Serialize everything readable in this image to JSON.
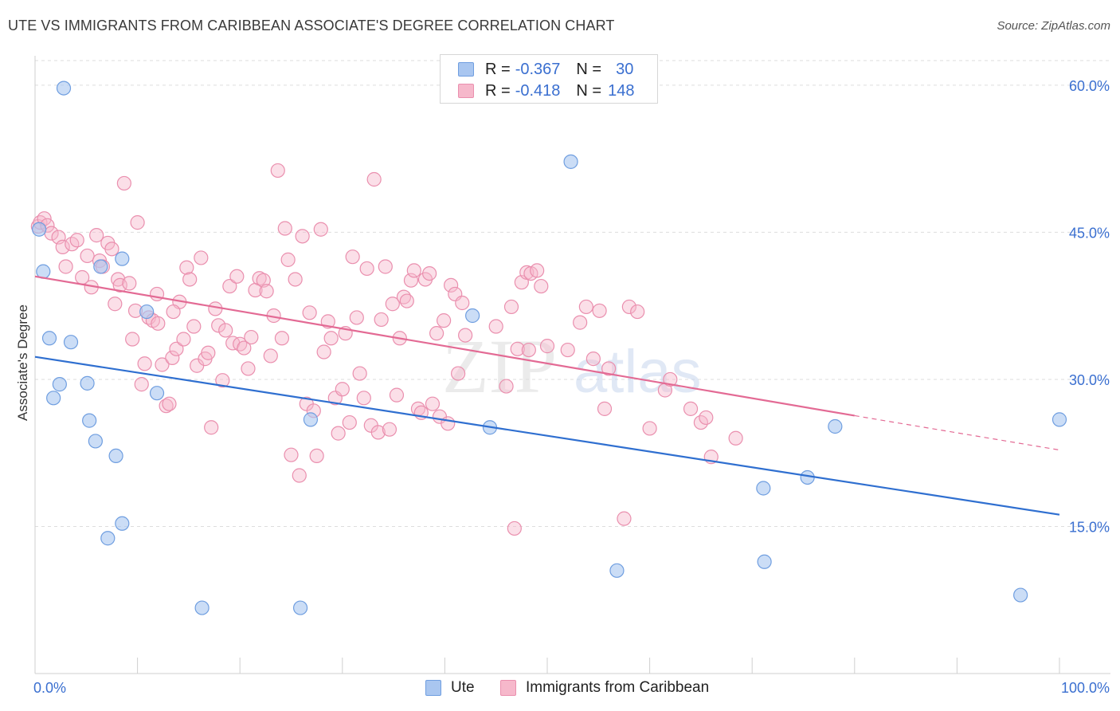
{
  "title": "UTE VS IMMIGRANTS FROM CARIBBEAN ASSOCIATE'S DEGREE CORRELATION CHART",
  "source": "Source: ZipAtlas.com",
  "watermark": {
    "zip": "ZIP",
    "atlas": "atlas"
  },
  "legend_top": [
    {
      "r_label": "R =",
      "r_value": "-0.367",
      "n_label": "N =",
      "n_value": "30"
    },
    {
      "r_label": "R =",
      "r_value": "-0.418",
      "n_label": "N =",
      "n_value": "148"
    }
  ],
  "legend_bottom": [
    "Ute",
    "Immigrants from Caribbean"
  ],
  "colors": {
    "ute_fill": "#a9c6f0",
    "ute_stroke": "#6f9ee0",
    "ute_line": "#2f6fd0",
    "carib_fill": "#f6b8cb",
    "carib_stroke": "#ea8fae",
    "carib_line": "#e36a94",
    "tick_label": "#3a6fd0",
    "grid": "#dddddd"
  },
  "chart_data": {
    "type": "scatter",
    "title": "UTE VS IMMIGRANTS FROM CARIBBEAN ASSOCIATE'S DEGREE CORRELATION CHART",
    "xlabel": "",
    "ylabel": "Associate's Degree",
    "xlim": [
      0,
      100
    ],
    "ylim": [
      0,
      63
    ],
    "x_tick_labels": [
      "0.0%",
      "100.0%"
    ],
    "y_ticks": [
      15,
      30,
      45,
      60
    ],
    "y_tick_labels": [
      "15.0%",
      "30.0%",
      "45.0%",
      "60.0%"
    ],
    "grid": true,
    "series": [
      {
        "name": "Ute",
        "points": [
          [
            0.4,
            45.3
          ],
          [
            2.8,
            59.7
          ],
          [
            0.8,
            41.0
          ],
          [
            1.4,
            34.2
          ],
          [
            3.5,
            33.8
          ],
          [
            1.8,
            28.1
          ],
          [
            2.4,
            29.5
          ],
          [
            5.1,
            29.6
          ],
          [
            5.3,
            25.8
          ],
          [
            5.9,
            23.7
          ],
          [
            6.4,
            41.5
          ],
          [
            8.5,
            42.3
          ],
          [
            10.9,
            36.9
          ],
          [
            11.9,
            28.6
          ],
          [
            7.9,
            22.2
          ],
          [
            8.5,
            15.3
          ],
          [
            7.1,
            13.8
          ],
          [
            16.3,
            6.7
          ],
          [
            25.9,
            6.7
          ],
          [
            26.9,
            25.9
          ],
          [
            42.7,
            36.5
          ],
          [
            44.4,
            25.1
          ],
          [
            52.3,
            52.2
          ],
          [
            56.8,
            10.5
          ],
          [
            71.2,
            11.4
          ],
          [
            71.1,
            18.9
          ],
          [
            75.4,
            20.0
          ],
          [
            78.1,
            25.2
          ],
          [
            96.2,
            8.0
          ],
          [
            100.0,
            25.9
          ]
        ]
      },
      {
        "name": "Immigrants from Caribbean",
        "points": [
          [
            0.3,
            45.6
          ],
          [
            0.5,
            46.0
          ],
          [
            0.9,
            46.4
          ],
          [
            1.2,
            45.7
          ],
          [
            1.6,
            44.9
          ],
          [
            2.3,
            44.5
          ],
          [
            2.7,
            43.5
          ],
          [
            3.0,
            41.5
          ],
          [
            3.6,
            43.8
          ],
          [
            4.1,
            44.2
          ],
          [
            4.6,
            40.4
          ],
          [
            5.1,
            42.6
          ],
          [
            5.5,
            39.4
          ],
          [
            6.0,
            44.7
          ],
          [
            6.3,
            42.1
          ],
          [
            6.6,
            41.5
          ],
          [
            7.1,
            43.9
          ],
          [
            7.5,
            43.3
          ],
          [
            7.8,
            37.7
          ],
          [
            8.1,
            40.2
          ],
          [
            8.3,
            39.6
          ],
          [
            8.7,
            50.0
          ],
          [
            9.2,
            39.8
          ],
          [
            9.5,
            34.1
          ],
          [
            10.0,
            46.0
          ],
          [
            10.4,
            29.5
          ],
          [
            10.7,
            31.6
          ],
          [
            11.1,
            36.3
          ],
          [
            11.5,
            36.0
          ],
          [
            11.9,
            38.7
          ],
          [
            12.4,
            31.5
          ],
          [
            12.8,
            27.3
          ],
          [
            13.1,
            27.5
          ],
          [
            13.4,
            32.2
          ],
          [
            13.8,
            33.1
          ],
          [
            14.1,
            37.9
          ],
          [
            14.5,
            34.1
          ],
          [
            14.8,
            41.4
          ],
          [
            15.1,
            40.2
          ],
          [
            15.5,
            35.4
          ],
          [
            15.8,
            31.4
          ],
          [
            16.2,
            42.4
          ],
          [
            16.6,
            32.1
          ],
          [
            16.9,
            32.7
          ],
          [
            17.2,
            25.1
          ],
          [
            17.6,
            37.2
          ],
          [
            17.9,
            35.5
          ],
          [
            18.3,
            29.9
          ],
          [
            18.6,
            35.0
          ],
          [
            19.0,
            39.5
          ],
          [
            19.3,
            33.7
          ],
          [
            19.7,
            40.5
          ],
          [
            20.0,
            33.6
          ],
          [
            20.4,
            33.2
          ],
          [
            20.8,
            31.1
          ],
          [
            21.1,
            34.3
          ],
          [
            21.5,
            39.1
          ],
          [
            21.9,
            40.3
          ],
          [
            22.3,
            40.1
          ],
          [
            22.6,
            39.0
          ],
          [
            23.0,
            32.4
          ],
          [
            23.3,
            36.5
          ],
          [
            23.7,
            51.3
          ],
          [
            24.1,
            34.2
          ],
          [
            24.4,
            45.4
          ],
          [
            24.7,
            42.2
          ],
          [
            25.0,
            22.3
          ],
          [
            25.4,
            40.2
          ],
          [
            25.8,
            20.2
          ],
          [
            26.1,
            44.6
          ],
          [
            26.5,
            27.5
          ],
          [
            26.8,
            36.8
          ],
          [
            27.2,
            26.8
          ],
          [
            27.5,
            22.2
          ],
          [
            27.9,
            45.3
          ],
          [
            28.2,
            32.8
          ],
          [
            28.6,
            35.9
          ],
          [
            28.9,
            34.2
          ],
          [
            29.3,
            28.1
          ],
          [
            29.6,
            24.5
          ],
          [
            30.0,
            29.0
          ],
          [
            30.3,
            34.7
          ],
          [
            30.7,
            25.6
          ],
          [
            31.0,
            42.5
          ],
          [
            31.4,
            36.3
          ],
          [
            31.7,
            30.6
          ],
          [
            32.1,
            28.1
          ],
          [
            32.4,
            41.3
          ],
          [
            32.8,
            25.3
          ],
          [
            33.1,
            50.4
          ],
          [
            33.5,
            24.6
          ],
          [
            33.8,
            36.1
          ],
          [
            34.2,
            41.5
          ],
          [
            34.6,
            24.9
          ],
          [
            34.9,
            37.7
          ],
          [
            35.3,
            28.4
          ],
          [
            35.6,
            34.2
          ],
          [
            36.0,
            38.4
          ],
          [
            36.3,
            38.0
          ],
          [
            36.7,
            40.1
          ],
          [
            37.0,
            41.1
          ],
          [
            37.4,
            27.0
          ],
          [
            37.7,
            26.6
          ],
          [
            38.1,
            40.2
          ],
          [
            38.5,
            40.8
          ],
          [
            38.8,
            27.5
          ],
          [
            39.2,
            34.7
          ],
          [
            39.5,
            26.2
          ],
          [
            39.9,
            36.0
          ],
          [
            40.3,
            25.5
          ],
          [
            40.6,
            39.6
          ],
          [
            41.0,
            38.7
          ],
          [
            41.3,
            30.6
          ],
          [
            41.7,
            37.8
          ],
          [
            42.0,
            34.5
          ],
          [
            45.0,
            35.4
          ],
          [
            46.0,
            29.3
          ],
          [
            46.5,
            37.4
          ],
          [
            47.1,
            33.1
          ],
          [
            47.5,
            39.9
          ],
          [
            48.0,
            40.9
          ],
          [
            48.4,
            40.8
          ],
          [
            49.0,
            41.1
          ],
          [
            49.4,
            39.5
          ],
          [
            50.0,
            33.4
          ],
          [
            53.2,
            35.8
          ],
          [
            53.8,
            37.4
          ],
          [
            54.5,
            32.1
          ],
          [
            55.1,
            37.0
          ],
          [
            56.0,
            31.1
          ],
          [
            57.5,
            15.8
          ],
          [
            58.0,
            37.4
          ],
          [
            61.5,
            28.9
          ],
          [
            65.0,
            25.6
          ],
          [
            65.5,
            26.1
          ],
          [
            68.4,
            24.0
          ],
          [
            66.0,
            22.1
          ],
          [
            60.0,
            25.0
          ],
          [
            62.0,
            30.0
          ],
          [
            64.0,
            27.0
          ],
          [
            46.8,
            14.8
          ],
          [
            48.2,
            33.0
          ],
          [
            52.0,
            33.0
          ],
          [
            55.6,
            27.0
          ],
          [
            58.8,
            36.9
          ],
          [
            9.8,
            37.0
          ],
          [
            12.0,
            35.7
          ],
          [
            13.5,
            36.9
          ]
        ]
      }
    ],
    "trendlines": [
      {
        "series": "Ute",
        "from": [
          0,
          32.3
        ],
        "to": [
          100,
          16.2
        ]
      },
      {
        "series": "Immigrants from Caribbean",
        "from": [
          0,
          40.5
        ],
        "to": [
          80,
          26.3
        ],
        "dashed_to": [
          100,
          22.8
        ]
      }
    ]
  }
}
